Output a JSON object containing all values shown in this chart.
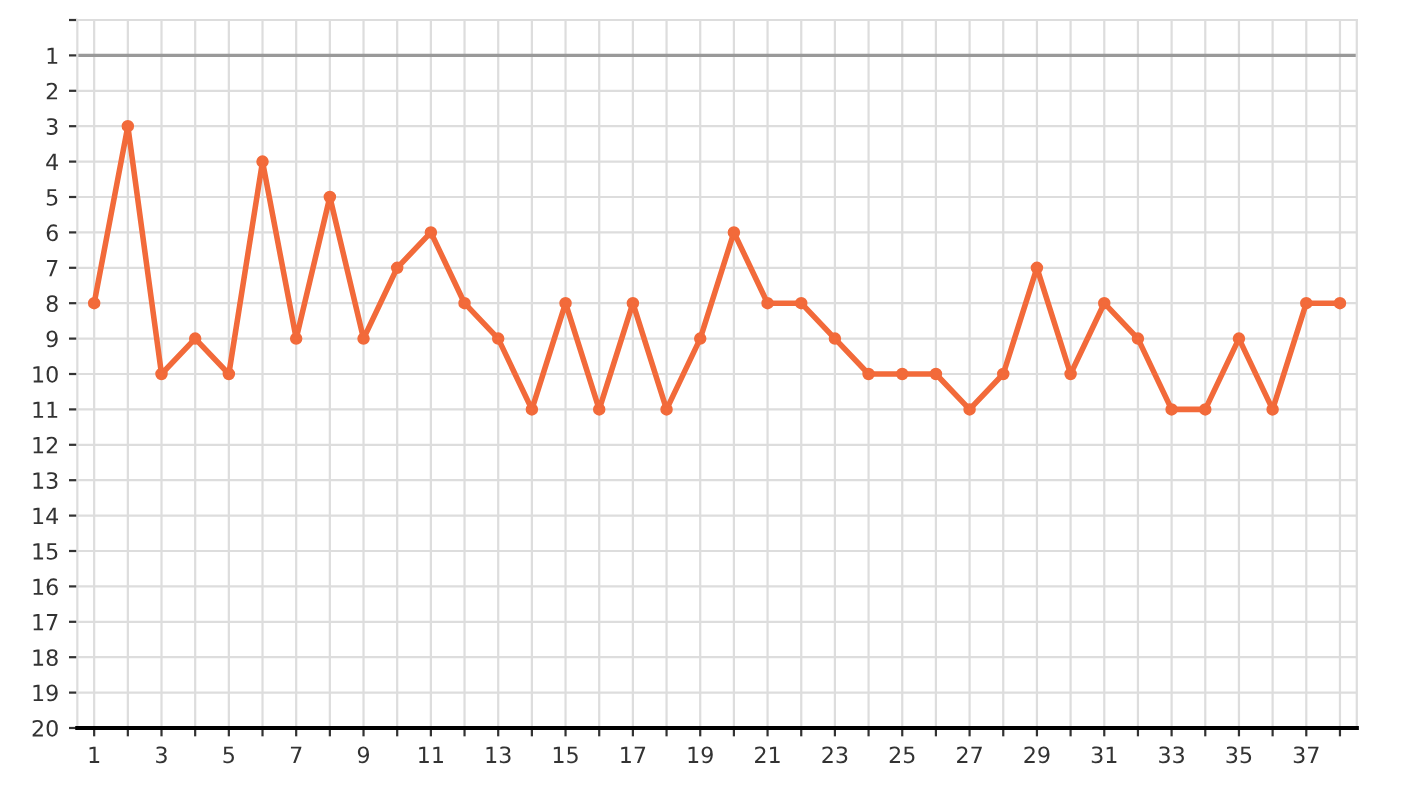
{
  "chart_data": {
    "type": "line",
    "x": [
      1,
      2,
      3,
      4,
      5,
      6,
      7,
      8,
      9,
      10,
      11,
      12,
      13,
      14,
      15,
      16,
      17,
      18,
      19,
      20,
      21,
      22,
      23,
      24,
      25,
      26,
      27,
      28,
      29,
      30,
      31,
      32,
      33,
      34,
      35,
      36,
      37,
      38
    ],
    "series": [
      {
        "color": "#f26a3a",
        "values": [
          8,
          3,
          10,
          9,
          10,
          4,
          9,
          5,
          9,
          7,
          6,
          8,
          9,
          11,
          8,
          11,
          8,
          11,
          9,
          6,
          8,
          8,
          9,
          10,
          10,
          10,
          11,
          10,
          7,
          10,
          8,
          9,
          11,
          11,
          9,
          11,
          8,
          8
        ]
      }
    ],
    "xlim": [
      0.5,
      38.5
    ],
    "xticks": [
      1,
      {
        "value": 2,
        "label": null
      },
      3,
      {
        "value": 4,
        "label": null
      },
      5,
      {
        "value": 6,
        "label": null
      },
      7,
      {
        "value": 8,
        "label": null
      },
      9,
      {
        "value": 10,
        "label": null
      },
      11,
      {
        "value": 12,
        "label": null
      },
      13,
      {
        "value": 14,
        "label": null
      },
      15,
      {
        "value": 16,
        "label": null
      },
      17,
      {
        "value": 18,
        "label": null
      },
      19,
      {
        "value": 20,
        "label": null
      },
      21,
      {
        "value": 22,
        "label": null
      },
      23,
      {
        "value": 24,
        "label": null
      },
      25,
      {
        "value": 26,
        "label": null
      },
      27,
      {
        "value": 28,
        "label": null
      },
      29,
      {
        "value": 30,
        "label": null
      },
      31,
      {
        "value": 32,
        "label": null
      },
      33,
      {
        "value": 34,
        "label": null
      },
      35,
      {
        "value": 36,
        "label": null
      },
      37,
      {
        "value": 38,
        "label": null
      }
    ],
    "ylim": [
      20,
      0
    ],
    "yticks": [
      {
        "value": 0,
        "label": null
      },
      1,
      2,
      3,
      4,
      5,
      6,
      7,
      8,
      9,
      10,
      11,
      12,
      13,
      14,
      15,
      16,
      17,
      18,
      19,
      20
    ],
    "ref_lines": [
      {
        "axis": "y",
        "value": 1,
        "color": "#999999"
      }
    ],
    "grid": true,
    "marker": "circle",
    "line_style": "solid",
    "legend": false
  }
}
